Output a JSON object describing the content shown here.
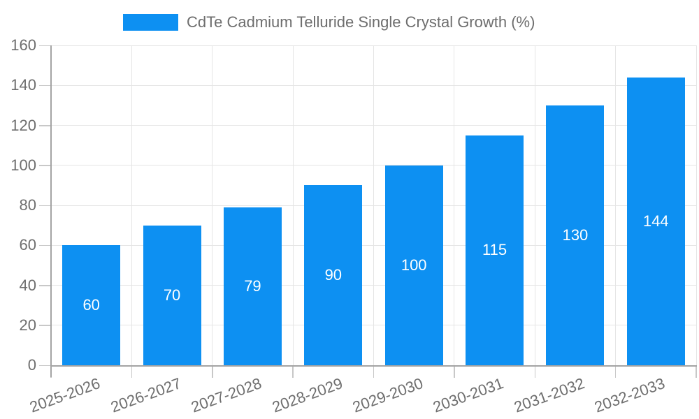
{
  "legend": {
    "label": "CdTe Cadmium Telluride Single Crystal Growth (%)"
  },
  "chart_data": {
    "type": "bar",
    "title": "CdTe Cadmium Telluride Single Crystal Growth (%)",
    "categories": [
      "2025-2026",
      "2026-2027",
      "2027-2028",
      "2028-2029",
      "2029-2030",
      "2030-2031",
      "2031-2032",
      "2032-2033"
    ],
    "values": [
      60,
      70,
      79,
      90,
      100,
      115,
      130,
      144
    ],
    "value_labels": [
      "60",
      "70",
      "79",
      "90",
      "100",
      "115",
      "130",
      "144"
    ],
    "xlabel": "",
    "ylabel": "",
    "ylim": [
      0,
      160
    ],
    "ytick_step": 20,
    "ytick_labels": [
      "0",
      "20",
      "40",
      "60",
      "80",
      "100",
      "120",
      "140",
      "160"
    ],
    "grid": true,
    "legend_position": "top"
  },
  "colors": {
    "bar": "#0d90f2",
    "grid": "#e5e5e5",
    "axis": "#a4a4a4",
    "tick": "#c8c8c8",
    "text": "#6e6e6e",
    "value_label": "#ffffff",
    "background": "#ffffff"
  }
}
